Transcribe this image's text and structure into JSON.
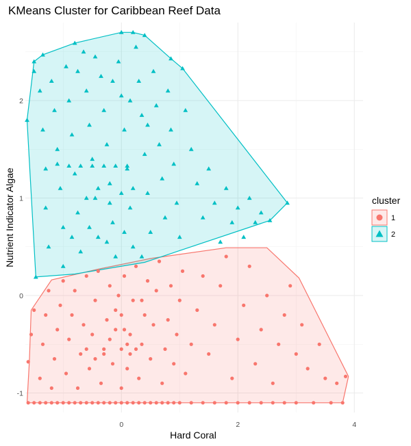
{
  "chart_data": {
    "type": "scatter",
    "title": "KMeans Cluster for Caribbean Reef Data",
    "xlabel": "Hard Coral",
    "ylabel": "Nutrient Indicator Algae",
    "xlim": [
      -1.65,
      4.15
    ],
    "ylim": [
      -1.2,
      2.8
    ],
    "x_ticks": [
      0,
      2,
      4
    ],
    "x_tick_labels": [
      "0",
      "2",
      "4"
    ],
    "y_ticks": [
      -1,
      0,
      1,
      2
    ],
    "y_tick_labels": [
      "-1",
      "0",
      "1",
      "2"
    ],
    "grid": true,
    "legend": {
      "title": "cluster",
      "position": "right",
      "entries": [
        {
          "label": "1",
          "shape": "circle",
          "color": "#F8766D"
        },
        {
          "label": "2",
          "shape": "triangle",
          "color": "#00BFC4"
        }
      ]
    },
    "series": [
      {
        "name": "1",
        "shape": "circle",
        "color": "#F8766D",
        "hull": [
          [
            -1.62,
            -1.1
          ],
          [
            -1.58,
            -0.67
          ],
          [
            -1.55,
            -0.15
          ],
          [
            -1.2,
            0.16
          ],
          [
            -0.4,
            0.27
          ],
          [
            0.5,
            0.38
          ],
          [
            1.8,
            0.49
          ],
          [
            2.5,
            0.49
          ],
          [
            3.05,
            0.18
          ],
          [
            3.9,
            -0.83
          ],
          [
            3.8,
            -1.1
          ]
        ],
        "points": [
          [
            -1.6,
            -1.1
          ],
          [
            -1.5,
            -1.1
          ],
          [
            -1.4,
            -1.1
          ],
          [
            -1.3,
            -1.1
          ],
          [
            -1.2,
            -1.1
          ],
          [
            -1.1,
            -1.1
          ],
          [
            -1.0,
            -1.1
          ],
          [
            -0.9,
            -1.1
          ],
          [
            -0.8,
            -1.1
          ],
          [
            -0.7,
            -1.1
          ],
          [
            -0.6,
            -1.1
          ],
          [
            -0.5,
            -1.1
          ],
          [
            -0.4,
            -1.1
          ],
          [
            -0.3,
            -1.1
          ],
          [
            -0.2,
            -1.1
          ],
          [
            -0.1,
            -1.1
          ],
          [
            0.0,
            -1.1
          ],
          [
            0.1,
            -1.1
          ],
          [
            0.2,
            -1.1
          ],
          [
            0.3,
            -1.1
          ],
          [
            0.4,
            -1.1
          ],
          [
            0.5,
            -1.1
          ],
          [
            0.6,
            -1.1
          ],
          [
            0.7,
            -1.1
          ],
          [
            0.8,
            -1.1
          ],
          [
            0.9,
            -1.1
          ],
          [
            1.0,
            -1.1
          ],
          [
            1.2,
            -1.1
          ],
          [
            1.4,
            -1.1
          ],
          [
            1.6,
            -1.1
          ],
          [
            1.8,
            -1.1
          ],
          [
            2.0,
            -1.1
          ],
          [
            2.2,
            -1.1
          ],
          [
            2.4,
            -1.1
          ],
          [
            2.6,
            -1.1
          ],
          [
            2.8,
            -1.1
          ],
          [
            3.0,
            -1.1
          ],
          [
            3.3,
            -1.1
          ],
          [
            3.6,
            -1.1
          ],
          [
            3.8,
            -1.1
          ],
          [
            -1.6,
            -0.68
          ],
          [
            -1.55,
            -0.4
          ],
          [
            -1.5,
            -0.15
          ],
          [
            -1.4,
            -0.85
          ],
          [
            -1.35,
            -0.5
          ],
          [
            -1.3,
            -0.2
          ],
          [
            -1.25,
            0.05
          ],
          [
            -1.2,
            -0.95
          ],
          [
            -1.15,
            -0.65
          ],
          [
            -1.1,
            -0.35
          ],
          [
            -1.05,
            -0.1
          ],
          [
            -1.0,
            0.15
          ],
          [
            -0.95,
            -0.8
          ],
          [
            -0.9,
            -0.45
          ],
          [
            -0.85,
            -0.2
          ],
          [
            -0.8,
            0.05
          ],
          [
            -0.75,
            -0.95
          ],
          [
            -0.7,
            -0.6
          ],
          [
            -0.65,
            -0.3
          ],
          [
            -0.6,
            0.2
          ],
          [
            -0.55,
            -0.75
          ],
          [
            -0.5,
            -0.4
          ],
          [
            -0.45,
            -0.05
          ],
          [
            -0.4,
            0.25
          ],
          [
            -0.35,
            -0.9
          ],
          [
            -0.3,
            -0.55
          ],
          [
            -0.25,
            -0.25
          ],
          [
            -0.2,
            0.1
          ],
          [
            -0.15,
            -0.7
          ],
          [
            -0.1,
            -0.35
          ],
          [
            -0.05,
            0.0
          ],
          [
            0.0,
            -0.95
          ],
          [
            0.0,
            -0.55
          ],
          [
            0.0,
            -0.2
          ],
          [
            0.05,
            0.2
          ],
          [
            0.1,
            -0.75
          ],
          [
            0.15,
            -0.4
          ],
          [
            0.2,
            -0.05
          ],
          [
            0.25,
            0.3
          ],
          [
            0.3,
            -0.85
          ],
          [
            0.35,
            -0.5
          ],
          [
            0.4,
            -0.2
          ],
          [
            0.45,
            0.15
          ],
          [
            0.5,
            -0.65
          ],
          [
            0.55,
            -0.3
          ],
          [
            0.6,
            0.05
          ],
          [
            0.65,
            0.35
          ],
          [
            0.7,
            -0.9
          ],
          [
            0.75,
            -0.55
          ],
          [
            0.8,
            -0.25
          ],
          [
            0.85,
            0.1
          ],
          [
            0.9,
            -0.7
          ],
          [
            0.95,
            -0.4
          ],
          [
            1.0,
            -0.05
          ],
          [
            1.05,
            0.25
          ],
          [
            1.1,
            -0.8
          ],
          [
            1.2,
            -0.5
          ],
          [
            1.3,
            -0.15
          ],
          [
            1.4,
            0.2
          ],
          [
            1.5,
            -0.6
          ],
          [
            1.6,
            -0.3
          ],
          [
            1.7,
            0.1
          ],
          [
            1.8,
            0.4
          ],
          [
            1.9,
            -0.85
          ],
          [
            2.0,
            -0.45
          ],
          [
            2.1,
            -0.1
          ],
          [
            2.2,
            0.3
          ],
          [
            2.3,
            -0.7
          ],
          [
            2.4,
            -0.35
          ],
          [
            2.5,
            0.0
          ],
          [
            2.6,
            -0.9
          ],
          [
            2.7,
            -0.5
          ],
          [
            2.8,
            -0.2
          ],
          [
            2.9,
            0.1
          ],
          [
            3.0,
            -0.6
          ],
          [
            3.1,
            -0.3
          ],
          [
            3.2,
            -0.75
          ],
          [
            3.4,
            -0.5
          ],
          [
            3.5,
            -0.85
          ],
          [
            3.7,
            -0.9
          ],
          [
            3.85,
            -0.83
          ],
          [
            -0.6,
            -0.55
          ],
          [
            -0.3,
            -0.6
          ],
          [
            0.1,
            -0.5
          ],
          [
            0.15,
            -0.6
          ],
          [
            -0.2,
            -0.45
          ],
          [
            0.25,
            -0.55
          ],
          [
            -0.45,
            -0.65
          ],
          [
            0.05,
            -0.35
          ],
          [
            -0.1,
            -0.15
          ],
          [
            0.35,
            -0.05
          ]
        ]
      },
      {
        "name": "2",
        "shape": "triangle",
        "color": "#00BFC4",
        "hull": [
          [
            -1.62,
            1.8
          ],
          [
            -1.52,
            2.3
          ],
          [
            -1.5,
            2.4
          ],
          [
            -1.35,
            2.47
          ],
          [
            -0.8,
            2.59
          ],
          [
            0.0,
            2.7
          ],
          [
            0.2,
            2.7
          ],
          [
            0.4,
            2.67
          ],
          [
            0.85,
            2.43
          ],
          [
            1.05,
            2.33
          ],
          [
            2.85,
            0.95
          ],
          [
            2.55,
            0.77
          ],
          [
            0.4,
            0.34
          ],
          [
            -0.8,
            0.22
          ],
          [
            -1.47,
            0.19
          ]
        ],
        "points": [
          [
            -1.62,
            1.8
          ],
          [
            -1.5,
            2.4
          ],
          [
            -1.5,
            2.3
          ],
          [
            -1.35,
            2.47
          ],
          [
            -0.8,
            2.59
          ],
          [
            0.0,
            2.7
          ],
          [
            0.2,
            2.7
          ],
          [
            0.4,
            2.67
          ],
          [
            0.85,
            2.43
          ],
          [
            1.05,
            2.33
          ],
          [
            2.85,
            0.95
          ],
          [
            2.55,
            0.77
          ],
          [
            -1.47,
            0.19
          ],
          [
            -1.4,
            2.1
          ],
          [
            -1.35,
            1.7
          ],
          [
            -1.3,
            1.3
          ],
          [
            -1.3,
            0.9
          ],
          [
            -1.25,
            0.5
          ],
          [
            -1.2,
            2.2
          ],
          [
            -1.15,
            1.9
          ],
          [
            -1.1,
            1.5
          ],
          [
            -1.05,
            1.1
          ],
          [
            -1.0,
            0.7
          ],
          [
            -1.0,
            0.3
          ],
          [
            -0.95,
            2.35
          ],
          [
            -0.9,
            2.0
          ],
          [
            -0.85,
            1.65
          ],
          [
            -0.8,
            1.25
          ],
          [
            -0.75,
            0.85
          ],
          [
            -0.7,
            0.45
          ],
          [
            -0.65,
            2.5
          ],
          [
            -0.6,
            2.1
          ],
          [
            -0.55,
            1.75
          ],
          [
            -0.5,
            1.4
          ],
          [
            -0.45,
            1.0
          ],
          [
            -0.4,
            0.6
          ],
          [
            -0.35,
            2.25
          ],
          [
            -0.3,
            1.9
          ],
          [
            -0.25,
            1.55
          ],
          [
            -0.2,
            1.15
          ],
          [
            -0.15,
            0.75
          ],
          [
            -0.1,
            0.4
          ],
          [
            -0.05,
            2.4
          ],
          [
            0.0,
            2.05
          ],
          [
            0.05,
            1.7
          ],
          [
            0.1,
            1.3
          ],
          [
            0.15,
            0.9
          ],
          [
            0.2,
            0.5
          ],
          [
            0.25,
            2.55
          ],
          [
            0.3,
            2.2
          ],
          [
            0.35,
            1.85
          ],
          [
            0.4,
            1.45
          ],
          [
            0.45,
            1.05
          ],
          [
            0.5,
            0.65
          ],
          [
            0.55,
            2.3
          ],
          [
            0.6,
            1.95
          ],
          [
            0.65,
            1.55
          ],
          [
            0.7,
            1.2
          ],
          [
            0.75,
            0.8
          ],
          [
            0.8,
            2.1
          ],
          [
            0.85,
            1.7
          ],
          [
            0.9,
            1.35
          ],
          [
            0.95,
            0.95
          ],
          [
            1.0,
            0.6
          ],
          [
            1.1,
            1.9
          ],
          [
            1.2,
            1.5
          ],
          [
            1.3,
            1.15
          ],
          [
            1.4,
            0.8
          ],
          [
            1.5,
            1.3
          ],
          [
            1.6,
            0.95
          ],
          [
            1.7,
            0.55
          ],
          [
            1.8,
            1.1
          ],
          [
            1.9,
            0.75
          ],
          [
            2.0,
            0.9
          ],
          [
            2.1,
            0.6
          ],
          [
            2.2,
            1.0
          ],
          [
            2.3,
            0.75
          ],
          [
            2.4,
            0.85
          ],
          [
            -1.1,
            1.35
          ],
          [
            -0.9,
            1.33
          ],
          [
            -0.7,
            1.33
          ],
          [
            -0.5,
            1.33
          ],
          [
            -0.3,
            1.33
          ],
          [
            -0.1,
            1.33
          ],
          [
            0.1,
            1.33
          ],
          [
            -0.6,
            1.0
          ],
          [
            -0.4,
            1.1
          ],
          [
            -0.2,
            0.95
          ],
          [
            0.0,
            1.05
          ],
          [
            0.2,
            1.1
          ],
          [
            -0.85,
            0.6
          ],
          [
            -0.55,
            0.7
          ],
          [
            -0.25,
            0.55
          ],
          [
            0.05,
            0.65
          ],
          [
            0.35,
            0.4
          ],
          [
            -0.75,
            2.3
          ],
          [
            -0.45,
            2.45
          ],
          [
            -0.15,
            2.2
          ],
          [
            0.15,
            2.0
          ],
          [
            0.45,
            1.75
          ]
        ]
      }
    ]
  }
}
